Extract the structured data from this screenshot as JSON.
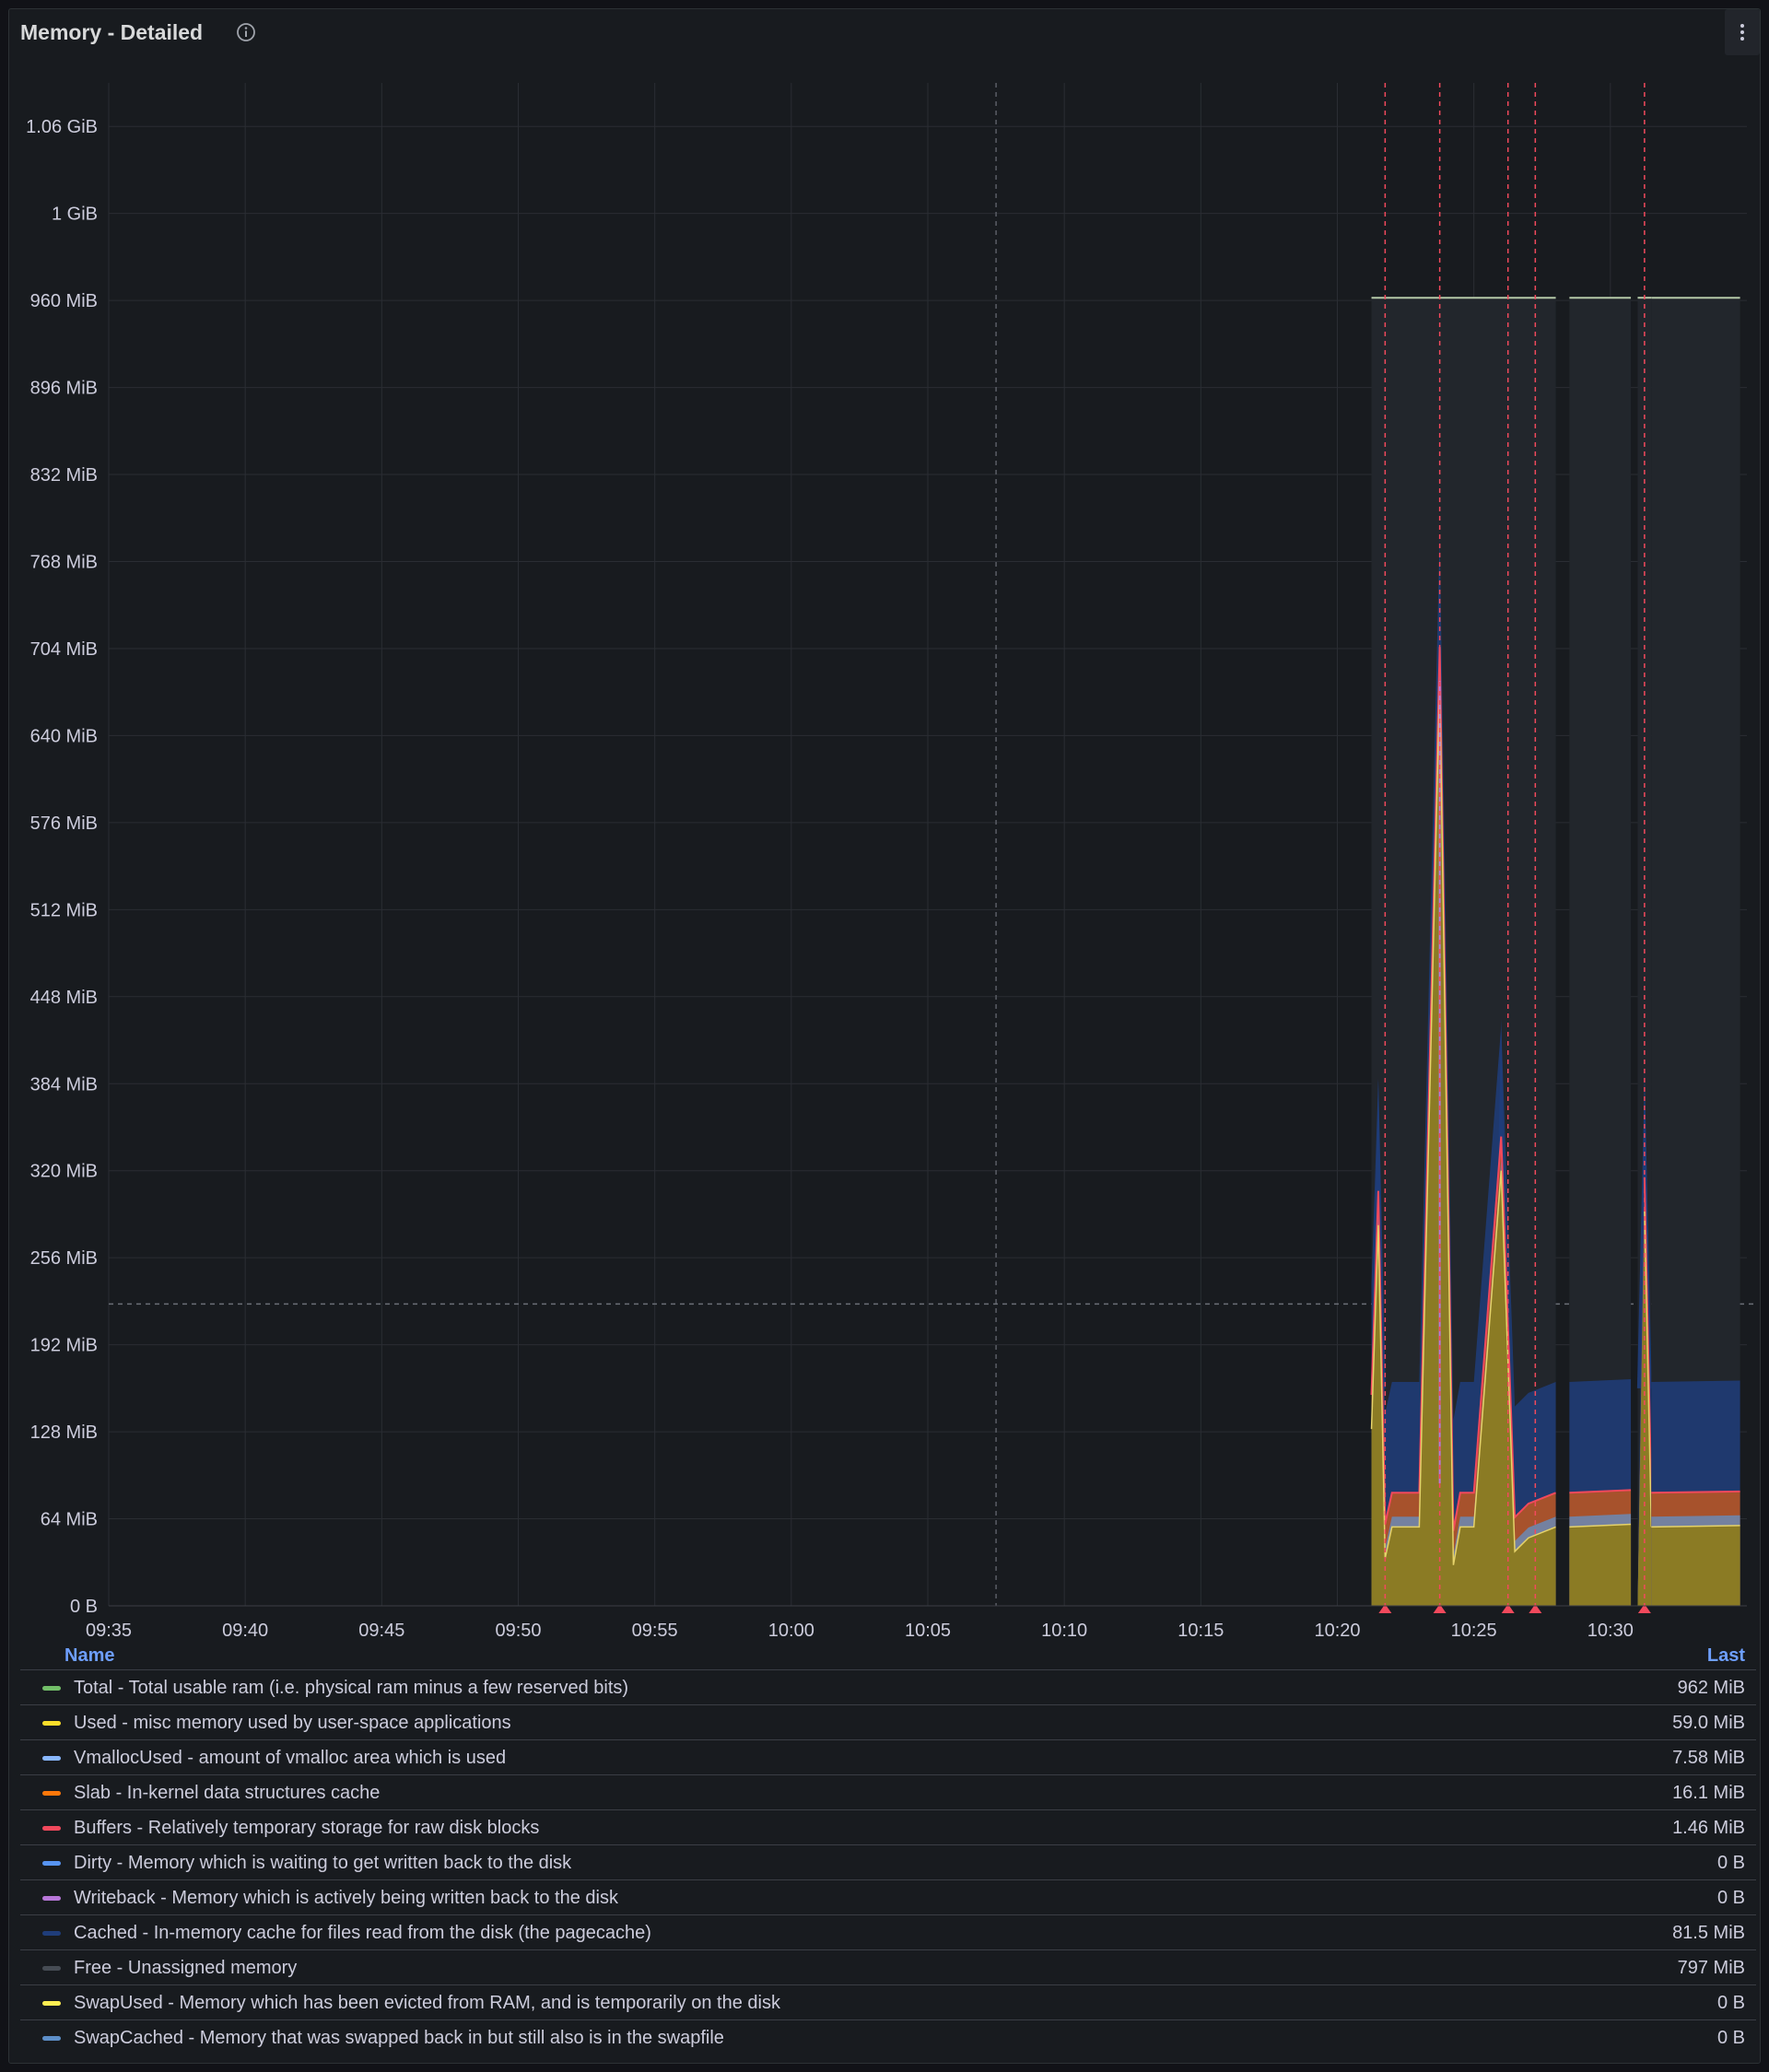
{
  "panel": {
    "title": "Memory - Detailed",
    "info_icon": "info-circle-icon",
    "menu_icon": "kebab-menu-icon"
  },
  "legend": {
    "name_header": "Name",
    "last_header": "Last",
    "items": [
      {
        "name": "Total - Total usable ram (i.e. physical ram minus a few reserved bits)",
        "last": "962 MiB",
        "color": "#73bf69"
      },
      {
        "name": "Used - misc memory used by user-space applications",
        "last": "59.0 MiB",
        "color": "#fade2a"
      },
      {
        "name": "VmallocUsed - amount of vmalloc area which is used",
        "last": "7.58 MiB",
        "color": "#8ab8ff"
      },
      {
        "name": "Slab - In-kernel data structures cache",
        "last": "16.1 MiB",
        "color": "#ff780a"
      },
      {
        "name": "Buffers - Relatively temporary storage for raw disk blocks",
        "last": "1.46 MiB",
        "color": "#f2495c"
      },
      {
        "name": "Dirty - Memory which is waiting to get written back to the disk",
        "last": "0 B",
        "color": "#5794f2"
      },
      {
        "name": "Writeback - Memory which is actively being written back to the disk",
        "last": "0 B",
        "color": "#b877d9"
      },
      {
        "name": "Cached - In-memory cache for files read from the disk (the pagecache)",
        "last": "81.5 MiB",
        "color": "#1f3d7a"
      },
      {
        "name": "Free - Unassigned memory",
        "last": "797 MiB",
        "color": "#464c54"
      },
      {
        "name": "SwapUsed - Memory which has been evicted from RAM, and is temporarily on the disk",
        "last": "0 B",
        "color": "#ffee52"
      },
      {
        "name": "SwapCached - Memory that was swapped back in but still also is in the swapfile",
        "last": "0 B",
        "color": "#5d8fc9"
      }
    ]
  },
  "chart_data": {
    "type": "area",
    "stacked": true,
    "x_unit": "time (HH:MM)",
    "x_range": [
      "09:35",
      "10:35"
    ],
    "y_unit": "MiB",
    "y_range": [
      0,
      1120
    ],
    "grid": true,
    "x_ticks": [
      "09:35",
      "09:40",
      "09:45",
      "09:50",
      "09:55",
      "10:00",
      "10:05",
      "10:10",
      "10:15",
      "10:20",
      "10:25",
      "10:30"
    ],
    "y_ticks": [
      {
        "value": 0,
        "label": "0 B"
      },
      {
        "value": 64,
        "label": "64 MiB"
      },
      {
        "value": 128,
        "label": "128 MiB"
      },
      {
        "value": 192,
        "label": "192 MiB"
      },
      {
        "value": 256,
        "label": "256 MiB"
      },
      {
        "value": 320,
        "label": "320 MiB"
      },
      {
        "value": 384,
        "label": "384 MiB"
      },
      {
        "value": 448,
        "label": "448 MiB"
      },
      {
        "value": 512,
        "label": "512 MiB"
      },
      {
        "value": 576,
        "label": "576 MiB"
      },
      {
        "value": 640,
        "label": "640 MiB"
      },
      {
        "value": 704,
        "label": "704 MiB"
      },
      {
        "value": 768,
        "label": "768 MiB"
      },
      {
        "value": 832,
        "label": "832 MiB"
      },
      {
        "value": 896,
        "label": "896 MiB"
      },
      {
        "value": 960,
        "label": "960 MiB"
      },
      {
        "value": 1024,
        "label": "1 GiB"
      },
      {
        "value": 1088,
        "label": "1.06 GiB"
      }
    ],
    "threshold_line_mib": 222,
    "vertical_marker_time": "10:07:30",
    "annotation_times": [
      "10:21:45",
      "10:23:45",
      "10:26:15",
      "10:27:15",
      "10:31:15"
    ],
    "data_segments": [
      {
        "start": "10:21:15",
        "end": "10:28:00"
      },
      {
        "start": "10:28:30",
        "end": "10:30:45"
      },
      {
        "start": "10:31:00",
        "end": "10:31:30"
      },
      {
        "start": "10:31:30",
        "end": "10:34:45"
      }
    ],
    "series": [
      {
        "name": "Total",
        "color": "#73bf69",
        "points": [
          [
            "10:21:15",
            962
          ],
          [
            "10:34:45",
            962
          ]
        ]
      },
      {
        "name": "Used",
        "color": "#fade2a",
        "points": [
          [
            "10:21:15",
            130
          ],
          [
            "10:21:30",
            280
          ],
          [
            "10:21:45",
            35
          ],
          [
            "10:22:00",
            58
          ],
          [
            "10:23:00",
            58
          ],
          [
            "10:23:45",
            680
          ],
          [
            "10:24:15",
            30
          ],
          [
            "10:24:30",
            58
          ],
          [
            "10:25:00",
            58
          ],
          [
            "10:26:00",
            320
          ],
          [
            "10:26:30",
            40
          ],
          [
            "10:27:00",
            50
          ],
          [
            "10:28:00",
            58
          ],
          [
            "10:28:30",
            58
          ],
          [
            "10:30:45",
            60
          ],
          [
            "10:31:15",
            290
          ],
          [
            "10:31:30",
            58
          ],
          [
            "10:34:45",
            59
          ]
        ]
      },
      {
        "name": "VmallocUsed",
        "color": "#8ab8ff",
        "value_typical": 7.58
      },
      {
        "name": "Slab",
        "color": "#ff780a",
        "value_typical": 16.1
      },
      {
        "name": "Buffers",
        "color": "#f2495c",
        "value_typical": 1.46
      },
      {
        "name": "Cached",
        "color": "#1f3d7a",
        "value_typical": 81.5,
        "peaks": [
          [
            "10:21:30",
            388
          ],
          [
            "10:26:00",
            432
          ],
          [
            "10:31:15",
            385
          ]
        ]
      },
      {
        "name": "Free",
        "color": "#464c54",
        "value_typical": 797
      }
    ]
  }
}
